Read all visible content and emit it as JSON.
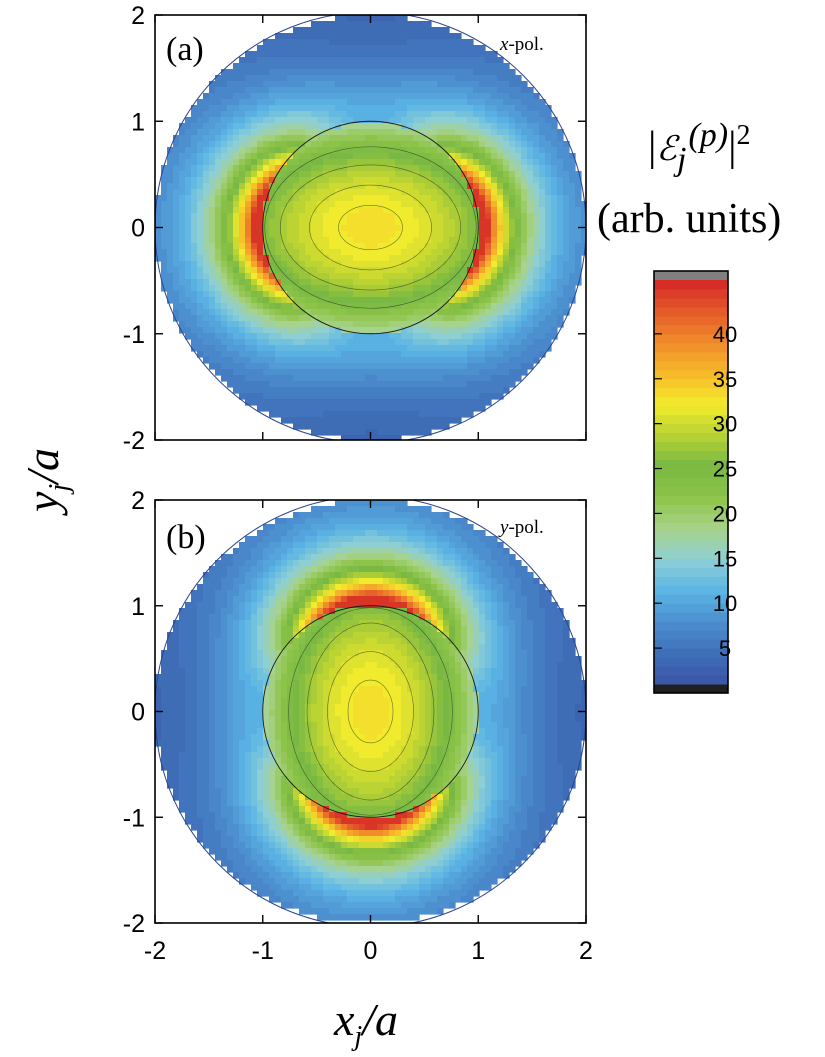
{
  "chart_data": [
    {
      "type": "heatmap",
      "panel_label": "(a)",
      "polarization": {
        "symbol": "x",
        "text": "-pol."
      },
      "x_range": [
        -2,
        2
      ],
      "y_range": [
        -2,
        2
      ],
      "x_ticks": [
        "-2",
        "-1",
        "0",
        "1",
        "2"
      ],
      "y_ticks": [
        "2",
        "1",
        "0",
        "-1",
        "-2"
      ],
      "x_tick_labels_shown": false,
      "domain_radius": 2,
      "inclusion_radius": 1,
      "peak_value": 45,
      "peak_location": "inclusion boundary at x = ±1, y = 0",
      "center_value": 33
    },
    {
      "type": "heatmap",
      "panel_label": "(b)",
      "polarization": {
        "symbol": "y",
        "text": "-pol."
      },
      "x_range": [
        -2,
        2
      ],
      "y_range": [
        -2,
        2
      ],
      "x_ticks": [
        "-2",
        "-1",
        "0",
        "1",
        "2"
      ],
      "y_ticks": [
        "2",
        "1",
        "0",
        "-1",
        "-2"
      ],
      "x_tick_labels_shown": true,
      "domain_radius": 2,
      "inclusion_radius": 1,
      "peak_value": 45,
      "peak_location": "inclusion boundary at x = 0, y = ±1",
      "center_value": 33
    }
  ],
  "axes": {
    "x_label": {
      "main": "x",
      "sub": "j",
      "rest": "/a"
    },
    "y_label": {
      "main": "y",
      "sub": "j",
      "rest": "/a"
    }
  },
  "colorbar": {
    "title_line1": {
      "bar_left": "|",
      "symbol": "ℰ",
      "sub": "j",
      "sup": "(p)",
      "bar_right": "|",
      "power": "2"
    },
    "title_line2": "(arb. units)",
    "min": 1,
    "max": 46,
    "ticks": [
      "5",
      "10",
      "15",
      "20",
      "25",
      "30",
      "35",
      "40"
    ],
    "tick_values": [
      5,
      10,
      15,
      20,
      25,
      30,
      35,
      40
    ],
    "over_color": "#808080",
    "under_color": "#202020",
    "colormap": [
      "#3a55a5",
      "#3f6fb8",
      "#4c8fd0",
      "#5bb4e4",
      "#8dcfd6",
      "#a8d38a",
      "#8ec449",
      "#77b843",
      "#b6d134",
      "#f3ec2c",
      "#f7b92a",
      "#f08c2b",
      "#e55a2a",
      "#d42626"
    ]
  }
}
